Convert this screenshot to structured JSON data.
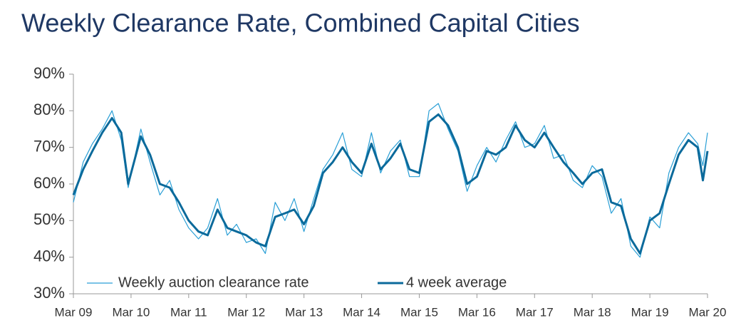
{
  "chart_data": {
    "type": "line",
    "title": "Weekly Clearance Rate, Combined Capital Cities",
    "x": [
      2009,
      2009.17,
      2009.33,
      2009.5,
      2009.67,
      2009.83,
      2009.95,
      2010.17,
      2010.33,
      2010.5,
      2010.67,
      2010.83,
      2011,
      2011.17,
      2011.33,
      2011.5,
      2011.67,
      2011.83,
      2012,
      2012.17,
      2012.33,
      2012.5,
      2012.67,
      2012.83,
      2013,
      2013.17,
      2013.33,
      2013.5,
      2013.67,
      2013.83,
      2014,
      2014.17,
      2014.33,
      2014.5,
      2014.67,
      2014.83,
      2015,
      2015.17,
      2015.33,
      2015.5,
      2015.67,
      2015.83,
      2016,
      2016.17,
      2016.33,
      2016.5,
      2016.67,
      2016.83,
      2017,
      2017.17,
      2017.33,
      2017.5,
      2017.67,
      2017.83,
      2018,
      2018.17,
      2018.33,
      2018.5,
      2018.67,
      2018.83,
      2019,
      2019.17,
      2019.33,
      2019.5,
      2019.67,
      2019.83,
      2019.92,
      2020
    ],
    "series": [
      {
        "name": "Weekly auction clearance rate",
        "color": "#2a9fd6",
        "values": [
          55,
          66,
          71,
          75,
          80,
          72,
          59,
          75,
          66,
          57,
          61,
          53,
          48,
          45,
          48,
          56,
          46,
          49,
          44,
          45,
          41,
          55,
          50,
          56,
          47,
          56,
          64,
          68,
          74,
          64,
          62,
          74,
          63,
          69,
          72,
          62,
          62,
          80,
          82,
          75,
          69,
          58,
          65,
          70,
          66,
          72,
          77,
          70,
          71,
          76,
          67,
          68,
          61,
          59,
          65,
          62,
          52,
          56,
          43,
          40,
          51,
          48,
          63,
          70,
          74,
          71,
          65,
          74
        ]
      },
      {
        "name": "4 week average",
        "color": "#0b6a9b",
        "values": [
          57,
          64,
          69,
          74,
          78,
          74,
          60,
          73,
          68,
          60,
          59,
          55,
          50,
          47,
          46,
          53,
          48,
          47,
          46,
          44,
          43,
          51,
          52,
          53,
          49,
          54,
          63,
          66,
          70,
          66,
          63,
          71,
          64,
          67,
          71,
          64,
          63,
          77,
          79,
          76,
          70,
          60,
          62,
          69,
          68,
          70,
          76,
          72,
          70,
          74,
          70,
          66,
          63,
          60,
          63,
          64,
          55,
          54,
          45,
          41,
          50,
          52,
          60,
          68,
          72,
          70,
          61,
          69
        ]
      }
    ],
    "xlim": [
      2009,
      2020
    ],
    "xticks": [
      {
        "value": 2009,
        "label": "Mar 09"
      },
      {
        "value": 2010,
        "label": "Mar 10"
      },
      {
        "value": 2011,
        "label": "Mar 11"
      },
      {
        "value": 2012,
        "label": "Mar 12"
      },
      {
        "value": 2013,
        "label": "Mar 13"
      },
      {
        "value": 2014,
        "label": "Mar 14"
      },
      {
        "value": 2015,
        "label": "Mar 15"
      },
      {
        "value": 2016,
        "label": "Mar 16"
      },
      {
        "value": 2017,
        "label": "Mar 17"
      },
      {
        "value": 2018,
        "label": "Mar 18"
      },
      {
        "value": 2019,
        "label": "Mar 19"
      },
      {
        "value": 2020,
        "label": "Mar 20"
      }
    ],
    "ylim": [
      30,
      90
    ],
    "yticks": [
      {
        "value": 30,
        "label": "30%"
      },
      {
        "value": 40,
        "label": "40%"
      },
      {
        "value": 50,
        "label": "50%"
      },
      {
        "value": 60,
        "label": "60%"
      },
      {
        "value": 70,
        "label": "70%"
      },
      {
        "value": 80,
        "label": "80%"
      },
      {
        "value": 90,
        "label": "90%"
      }
    ],
    "legend": "bottom-left"
  }
}
